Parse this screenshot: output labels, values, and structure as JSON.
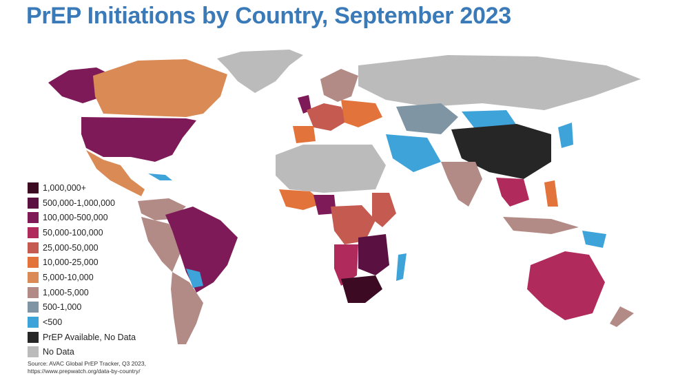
{
  "title": "PrEP Initiations by Country, September 2023",
  "legend": [
    {
      "label": "1,000,000+",
      "color": "#3d0a24"
    },
    {
      "label": "500,000-1,000,000",
      "color": "#5a1040"
    },
    {
      "label": "100,000-500,000",
      "color": "#7e1a57"
    },
    {
      "label": "50,000-100,000",
      "color": "#b02a5c"
    },
    {
      "label": "25,000-50,000",
      "color": "#c45a50"
    },
    {
      "label": "10,000-25,000",
      "color": "#e2733a"
    },
    {
      "label": "5,000-10,000",
      "color": "#d98a55"
    },
    {
      "label": "1,000-5,000",
      "color": "#b38b86"
    },
    {
      "label": "500-1,000",
      "color": "#7f95a3"
    },
    {
      "label": "<500",
      "color": "#3ea3d8"
    },
    {
      "label": "PrEP Available, No Data",
      "color": "#262626"
    },
    {
      "label": "No Data",
      "color": "#bbbbbb"
    }
  ],
  "source": {
    "line1": "Source: AVAC Global PrEP Tracker, Q3 2023,",
    "line2": "https://www.prepwatch.org/data-by-country/"
  }
}
